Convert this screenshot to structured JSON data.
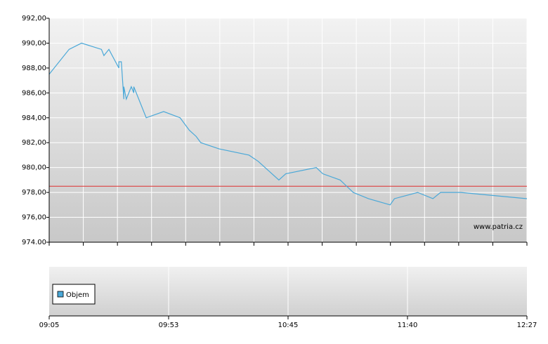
{
  "chart_data": {
    "type": "line",
    "x": [
      "09:05",
      "09:13",
      "09:18",
      "09:26",
      "09:27",
      "09:29",
      "09:33",
      "09:33",
      "09:34",
      "09:35",
      "09:35",
      "09:36",
      "09:38",
      "09:39",
      "09:39",
      "09:44",
      "09:51",
      "09:58",
      "10:02",
      "10:05",
      "10:07",
      "10:15",
      "10:28",
      "10:32",
      "10:38",
      "10:41",
      "10:44",
      "10:58",
      "11:01",
      "11:09",
      "11:12",
      "11:15",
      "11:22",
      "11:32",
      "11:34",
      "11:44",
      "11:50",
      "11:53",
      "12:01",
      "12:27"
    ],
    "series": [
      {
        "color": "#4aa8d8",
        "values": [
          987.5,
          989.5,
          990.0,
          989.5,
          989.0,
          989.5,
          988.0,
          988.5,
          988.5,
          985.5,
          986.5,
          985.5,
          986.5,
          986.0,
          986.5,
          984.0,
          984.5,
          984.0,
          983.0,
          982.5,
          982.0,
          981.5,
          981.0,
          980.5,
          979.5,
          979.0,
          979.5,
          980.0,
          979.5,
          979.0,
          978.5,
          978.0,
          977.5,
          977.0,
          977.5,
          978.0,
          977.5,
          978.0,
          978.0,
          977.5
        ]
      }
    ],
    "ylim": [
      974,
      992
    ],
    "yticks": [
      {
        "value": 974,
        "label": "974.00"
      },
      {
        "value": 976,
        "label": "976,00"
      },
      {
        "value": 978,
        "label": "978,00"
      },
      {
        "value": 980,
        "label": "980,00"
      },
      {
        "value": 982,
        "label": "982,00"
      },
      {
        "value": 984,
        "label": "984,00"
      },
      {
        "value": 986,
        "label": "986,00"
      },
      {
        "value": 988,
        "label": "988,00"
      },
      {
        "value": 990,
        "label": "990,00"
      },
      {
        "value": 992,
        "label": "992,00"
      }
    ],
    "xticks": [
      "09:05",
      "09:53",
      "10:45",
      "11:40",
      "12:27"
    ],
    "reference_line": {
      "value": 978.5,
      "color": "#e03030"
    },
    "watermark": "www.patria.cz",
    "volume_legend": {
      "name": "Objem",
      "color": "#4aa8d8"
    },
    "grid": true
  }
}
